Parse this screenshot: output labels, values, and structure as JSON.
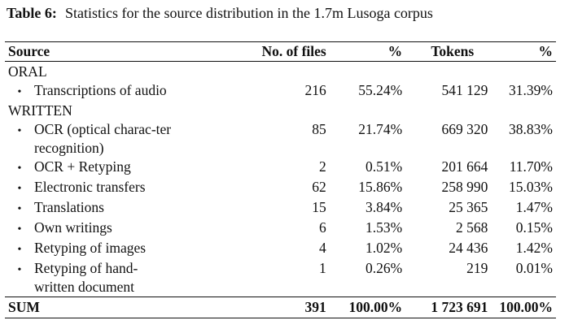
{
  "caption": {
    "label": "Table 6:",
    "text": "Statistics for the source distribution in the 1.7m Lusoga corpus"
  },
  "columns": [
    "Source",
    "No. of files",
    "%",
    "Tokens",
    "%"
  ],
  "groups": [
    {
      "name": "ORAL",
      "rows": [
        {
          "source": "Transcriptions of audio",
          "files": "216",
          "files_pct": "55.24%",
          "tokens": "541 129",
          "tokens_pct": "31.39%"
        }
      ]
    },
    {
      "name": "WRITTEN",
      "rows": [
        {
          "source": "OCR (optical charac-ter recognition)",
          "files": "85",
          "files_pct": "21.74%",
          "tokens": "669 320",
          "tokens_pct": "38.83%"
        },
        {
          "source": "OCR + Retyping",
          "files": "2",
          "files_pct": "0.51%",
          "tokens": "201 664",
          "tokens_pct": "11.70%"
        },
        {
          "source": "Electronic transfers",
          "files": "62",
          "files_pct": "15.86%",
          "tokens": "258 990",
          "tokens_pct": "15.03%"
        },
        {
          "source": "Translations",
          "files": "15",
          "files_pct": "3.84%",
          "tokens": "25 365",
          "tokens_pct": "1.47%"
        },
        {
          "source": "Own writings",
          "files": "6",
          "files_pct": "1.53%",
          "tokens": "2 568",
          "tokens_pct": "0.15%"
        },
        {
          "source": "Retyping of images",
          "files": "4",
          "files_pct": "1.02%",
          "tokens": "24 436",
          "tokens_pct": "1.42%"
        },
        {
          "source": "Retyping of hand-written document",
          "files": "1",
          "files_pct": "0.26%",
          "tokens": "219",
          "tokens_pct": "0.01%"
        }
      ]
    }
  ],
  "sum": {
    "label": "SUM",
    "files": "391",
    "files_pct": "100.00%",
    "tokens": "1 723 691",
    "tokens_pct": "100.00%"
  },
  "bullet_icon": "•"
}
